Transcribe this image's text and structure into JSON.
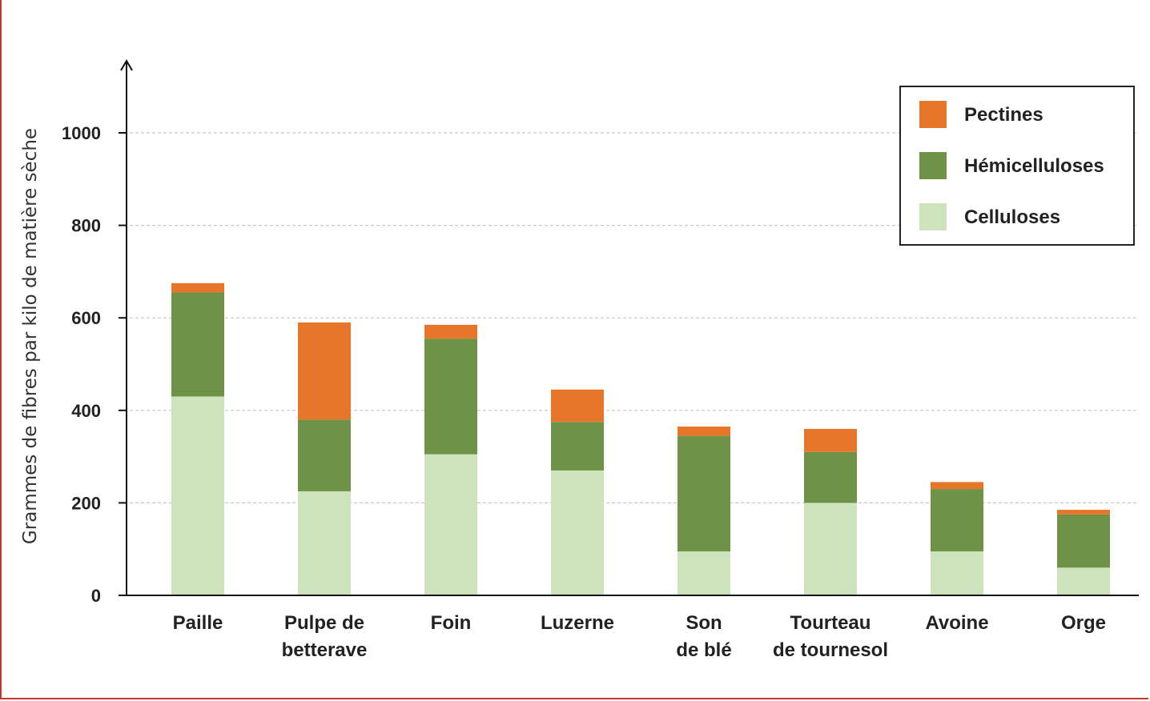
{
  "chart_data": {
    "type": "bar",
    "stacked": true,
    "title": "",
    "xlabel": "",
    "ylabel": "Grammes de fibres par kilo de matière sèche",
    "ylim": [
      0,
      1000
    ],
    "yticks": [
      0,
      200,
      400,
      600,
      800,
      1000
    ],
    "grid": true,
    "legend_position": "top-right",
    "categories": [
      [
        "Paille"
      ],
      [
        "Pulpe de",
        "betterave"
      ],
      [
        "Foin"
      ],
      [
        "Luzerne"
      ],
      [
        "Son",
        "de blé"
      ],
      [
        "Tourteau",
        "de tournesol"
      ],
      [
        "Avoine"
      ],
      [
        "Orge"
      ]
    ],
    "series": [
      {
        "name": "Celluloses",
        "color": "#cde3bb",
        "values": [
          430,
          225,
          305,
          270,
          95,
          200,
          95,
          60
        ]
      },
      {
        "name": "Hémicelluloses",
        "color": "#6e9346",
        "values": [
          225,
          155,
          250,
          105,
          250,
          110,
          135,
          115
        ]
      },
      {
        "name": "Pectines",
        "color": "#e8762a",
        "values": [
          20,
          210,
          30,
          70,
          20,
          50,
          15,
          10
        ]
      }
    ],
    "legend_order": [
      "Pectines",
      "Hémicelluloses",
      "Celluloses"
    ]
  }
}
